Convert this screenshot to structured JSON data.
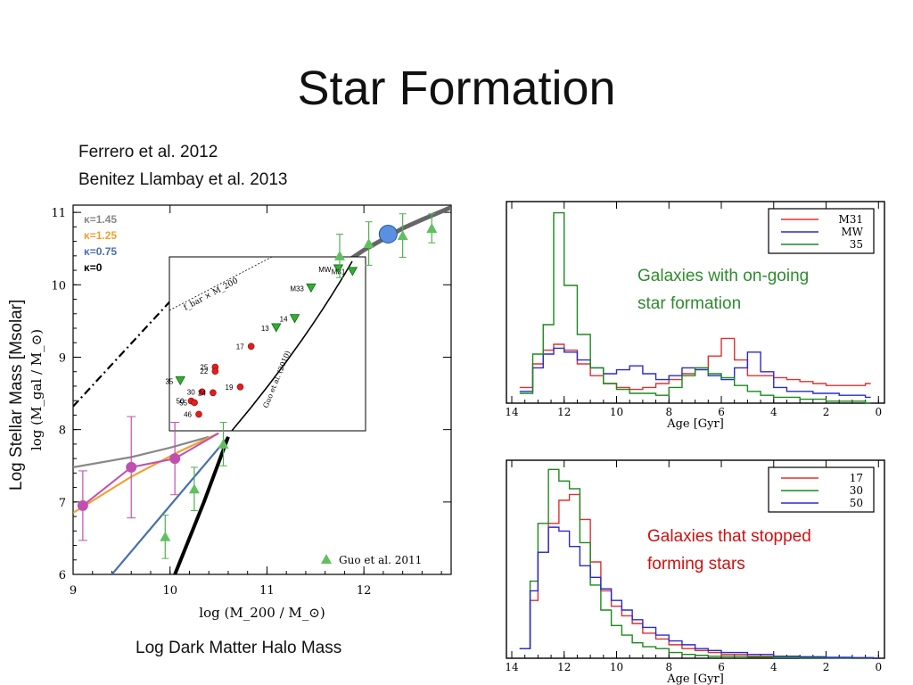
{
  "slide": {
    "title": "Star Formation",
    "references": [
      "Ferrero et al. 2012",
      "Benitez Llambay et al. 2013"
    ],
    "ylabel": "Log Stellar Mass [Msolar]",
    "xlabel": "Log Dark Matter Halo Mass"
  },
  "left_plot": {
    "ylabel": "log (M_gal / M_⊙)",
    "xlabel": "log (M_200 / M_⊙)",
    "legend": [
      "κ=1.45",
      "κ=1.25",
      "κ=0.75",
      "κ=0"
    ],
    "legend_colors": [
      "#888888",
      "#f0a030",
      "#4a6fb0",
      "#000000"
    ],
    "guo_label": "Guo et al. 2011",
    "inset_labels": {
      "line": "f_bar × M_200",
      "curve": "Guo et al. (2010)"
    }
  },
  "top_right": {
    "caption": [
      "Galaxies with on-going",
      "star formation"
    ],
    "caption_color": "#2e8b2e",
    "legend": [
      "M31",
      "MW",
      "35"
    ],
    "colors": [
      "#e03030",
      "#2a2ad0",
      "#1a8a1a"
    ],
    "xlabel": "Age [Gyr]"
  },
  "bottom_right": {
    "caption": [
      "Galaxies that stopped",
      "forming stars"
    ],
    "caption_color": "#d01010",
    "legend": [
      "17",
      "30",
      "50"
    ],
    "colors": [
      "#e03030",
      "#1a8a1a",
      "#2a2ad0"
    ],
    "xlabel": "Age [Gyr]"
  },
  "chart_data": [
    {
      "type": "scatter",
      "title": "",
      "xlabel": "log (M_200 / M_⊙)",
      "ylabel": "log (M_gal / M_⊙)",
      "xlim": [
        9,
        12.9
      ],
      "ylim": [
        6,
        11.1
      ],
      "xticks": [
        "9",
        "10",
        "11",
        "12"
      ],
      "yticks": [
        "6",
        "7",
        "8",
        "9",
        "10",
        "11"
      ],
      "series": [
        {
          "name": "",
          "points": [
            [
              9.1,
              6.95
            ],
            [
              9.6,
              7.48
            ],
            [
              10.05,
              7.6
            ]
          ],
          "errors": [
            0.48,
            0.7,
            0.5
          ]
        },
        {
          "name": "Guo et al. 2011",
          "points": [
            [
              9.95,
              6.52
            ],
            [
              10.25,
              7.18
            ],
            [
              10.55,
              7.8
            ],
            [
              11.75,
              10.4
            ],
            [
              12.05,
              10.57
            ],
            [
              12.4,
              10.68
            ],
            [
              12.7,
              10.78
            ]
          ],
          "errors": [
            0.3,
            0.3,
            0.3,
            0.3,
            0.3,
            0.3,
            0.2
          ]
        }
      ],
      "inset_points": [
        {
          "label": "MW",
          "x": 11.65,
          "y": 10.15,
          "kind": "triangle"
        },
        {
          "label": "M31",
          "x": 11.78,
          "y": 10.12,
          "kind": "triangle"
        },
        {
          "label": "M33",
          "x": 11.4,
          "y": 9.92,
          "kind": "triangle"
        },
        {
          "label": "13",
          "x": 11.08,
          "y": 9.44,
          "kind": "triangle"
        },
        {
          "label": "14",
          "x": 11.25,
          "y": 9.55,
          "kind": "triangle"
        },
        {
          "label": "35",
          "x": 10.2,
          "y": 8.8,
          "kind": "triangle"
        },
        {
          "label": "17",
          "x": 10.85,
          "y": 9.22,
          "kind": "dot"
        },
        {
          "label": "25",
          "x": 10.52,
          "y": 8.97,
          "kind": "dot"
        },
        {
          "label": "22",
          "x": 10.52,
          "y": 8.92,
          "kind": "dot"
        },
        {
          "label": "19",
          "x": 10.75,
          "y": 8.73,
          "kind": "dot"
        },
        {
          "label": "30",
          "x": 10.4,
          "y": 8.67,
          "kind": "dot"
        },
        {
          "label": "24",
          "x": 10.5,
          "y": 8.66,
          "kind": "dot"
        },
        {
          "label": "50",
          "x": 10.3,
          "y": 8.56,
          "kind": "dot"
        },
        {
          "label": "55",
          "x": 10.33,
          "y": 8.54,
          "kind": "dot"
        },
        {
          "label": "46",
          "x": 10.37,
          "y": 8.4,
          "kind": "dot"
        }
      ]
    },
    {
      "type": "line",
      "title": "",
      "xlabel": "Age [Gyr]",
      "xlim": [
        14,
        0
      ],
      "xticks": [
        "14",
        "12",
        "10",
        "8",
        "6",
        "4",
        "2",
        "0"
      ],
      "series": [
        {
          "name": "M31",
          "x": [
            13.7,
            13.2,
            12.8,
            12.4,
            12,
            11.5,
            11,
            10.5,
            10,
            9.5,
            9,
            8.5,
            8,
            7.5,
            7,
            6.5,
            6,
            5.5,
            5,
            4.5,
            4,
            3.5,
            3,
            2.5,
            2,
            1.5,
            1,
            0.5
          ],
          "y": [
            0.08,
            0.2,
            0.27,
            0.3,
            0.27,
            0.2,
            0.14,
            0.1,
            0.08,
            0.07,
            0.08,
            0.1,
            0.12,
            0.15,
            0.18,
            0.24,
            0.33,
            0.22,
            0.14,
            0.14,
            0.13,
            0.12,
            0.11,
            0.1,
            0.09,
            0.09,
            0.09,
            0.1
          ]
        },
        {
          "name": "MW",
          "x": [
            13.7,
            13.2,
            12.8,
            12.4,
            12,
            11.5,
            11,
            10.5,
            10,
            9.5,
            9,
            8.5,
            8,
            7.5,
            7,
            6.5,
            6,
            5.5,
            5,
            4.5,
            4,
            3.5,
            3,
            2.5,
            2,
            1.5,
            1,
            0.5
          ],
          "y": [
            0.06,
            0.18,
            0.25,
            0.28,
            0.26,
            0.22,
            0.18,
            0.15,
            0.17,
            0.19,
            0.15,
            0.12,
            0.14,
            0.18,
            0.17,
            0.14,
            0.12,
            0.18,
            0.26,
            0.16,
            0.08,
            0.06,
            0.06,
            0.05,
            0.05,
            0.04,
            0.04,
            0.03
          ]
        },
        {
          "name": "35",
          "x": [
            13.7,
            13.2,
            12.8,
            12.4,
            12,
            11.5,
            11,
            10.5,
            10,
            9.5,
            9,
            8.5,
            8,
            7.5,
            7,
            6.5,
            6,
            5.5,
            5,
            4.5,
            4,
            3.5,
            3,
            2.5,
            2,
            1.5,
            1,
            0.5
          ],
          "y": [
            0.05,
            0.25,
            0.4,
            0.97,
            0.6,
            0.35,
            0.18,
            0.1,
            0.07,
            0.05,
            0.05,
            0.04,
            0.08,
            0.14,
            0.18,
            0.15,
            0.13,
            0.09,
            0.06,
            0.04,
            0.03,
            0.03,
            0.02,
            0.02,
            0.01,
            0.01,
            0.01,
            0.0
          ]
        }
      ]
    },
    {
      "type": "line",
      "title": "",
      "xlabel": "Age [Gyr]",
      "xlim": [
        14,
        0
      ],
      "xticks": [
        "14",
        "12",
        "10",
        "8",
        "6",
        "4",
        "2",
        "0"
      ],
      "series": [
        {
          "name": "17",
          "x": [
            13.7,
            13.3,
            13,
            12.6,
            12.2,
            11.8,
            11.4,
            11,
            10.6,
            10.2,
            9.8,
            9.4,
            9,
            8.5,
            8,
            7.5,
            7,
            6.5,
            6,
            5,
            4,
            3,
            2,
            1,
            0.2
          ],
          "y": [
            0.05,
            0.3,
            0.55,
            0.7,
            0.82,
            0.85,
            0.72,
            0.5,
            0.35,
            0.27,
            0.22,
            0.18,
            0.13,
            0.1,
            0.07,
            0.05,
            0.04,
            0.03,
            0.02,
            0.01,
            0.01,
            0.005,
            0.003,
            0.002,
            0.0
          ]
        },
        {
          "name": "30",
          "x": [
            13.7,
            13.3,
            13,
            12.6,
            12.2,
            11.8,
            11.4,
            11,
            10.6,
            10.2,
            9.8,
            9.4,
            9,
            8.5,
            8,
            7.5,
            7,
            6.5,
            6,
            5,
            4,
            3,
            2,
            1,
            0.2
          ],
          "y": [
            0.05,
            0.4,
            0.7,
            0.98,
            0.92,
            0.88,
            0.6,
            0.38,
            0.25,
            0.17,
            0.12,
            0.08,
            0.06,
            0.05,
            0.03,
            0.02,
            0.015,
            0.01,
            0.01,
            0.005,
            0.003,
            0.002,
            0.001,
            0.0,
            0.0
          ]
        },
        {
          "name": "50",
          "x": [
            13.7,
            13.3,
            13,
            12.6,
            12.2,
            11.8,
            11.4,
            11,
            10.6,
            10.2,
            9.8,
            9.4,
            9,
            8.5,
            8,
            7.5,
            7,
            6.5,
            6,
            5,
            4,
            3,
            2,
            1,
            0.2
          ],
          "y": [
            0.05,
            0.35,
            0.55,
            0.68,
            0.66,
            0.58,
            0.48,
            0.42,
            0.36,
            0.3,
            0.25,
            0.2,
            0.16,
            0.12,
            0.09,
            0.07,
            0.05,
            0.04,
            0.03,
            0.02,
            0.01,
            0.008,
            0.005,
            0.003,
            0.0
          ]
        }
      ]
    }
  ]
}
